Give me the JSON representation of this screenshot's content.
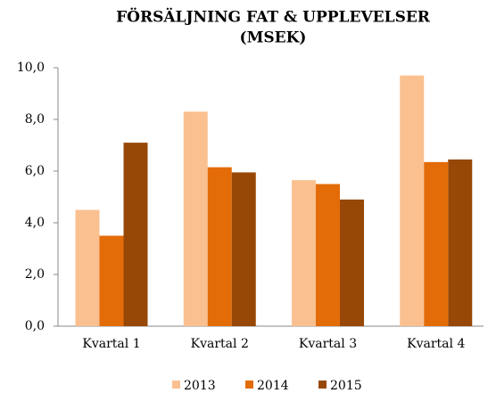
{
  "chart_data": {
    "type": "bar",
    "title": [
      "FÖRSÄLJNING FAT & UPPLEVELSER",
      "(MSEK)"
    ],
    "categories": [
      "Kvartal 1",
      "Kvartal 2",
      "Kvartal 3",
      "Kvartal 4"
    ],
    "series": [
      {
        "name": "2013",
        "color": "#fac090",
        "values": [
          4.5,
          8.3,
          5.65,
          9.7
        ]
      },
      {
        "name": "2014",
        "color": "#e36c09",
        "values": [
          3.5,
          6.15,
          5.5,
          6.35
        ]
      },
      {
        "name": "2015",
        "color": "#984806",
        "values": [
          7.1,
          5.95,
          4.9,
          6.45
        ]
      }
    ],
    "ylim": [
      0,
      10
    ],
    "yticks": [
      {
        "value": 0,
        "label": "0,0"
      },
      {
        "value": 2,
        "label": "2,0"
      },
      {
        "value": 4,
        "label": "4,0"
      },
      {
        "value": 6,
        "label": "6,0"
      },
      {
        "value": 8,
        "label": "8,0"
      },
      {
        "value": 10,
        "label": "10,0"
      }
    ],
    "grid": false,
    "legend": "bottom"
  }
}
